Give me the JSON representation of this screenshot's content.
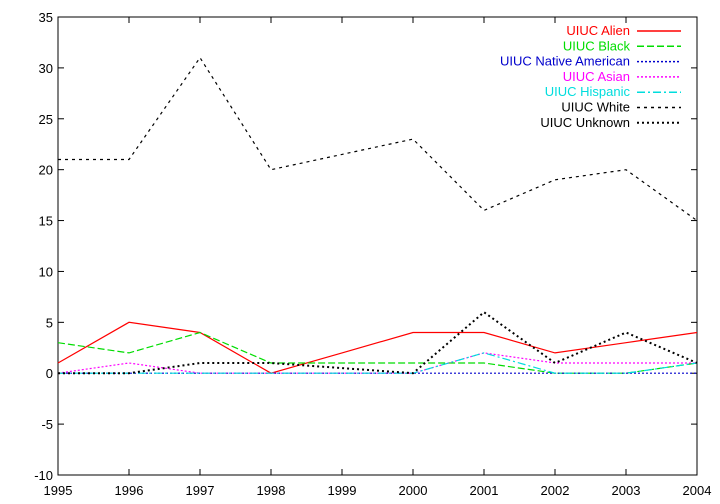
{
  "chart_data": {
    "type": "line",
    "title": "",
    "xlabel": "",
    "ylabel": "",
    "x": [
      1995,
      1996,
      1997,
      1998,
      1999,
      2000,
      2001,
      2002,
      2003,
      2004
    ],
    "xlim": [
      1995,
      2004
    ],
    "ylim": [
      -10,
      35
    ],
    "x_ticks": [
      "1995",
      "1996",
      "1997",
      "1998",
      "1999",
      "2000",
      "2001",
      "2002",
      "2003",
      "2004"
    ],
    "y_ticks": [
      "-10",
      "-5",
      "0",
      "5",
      "10",
      "15",
      "20",
      "25",
      "30",
      "35"
    ],
    "grid": false,
    "legend_position": "top-right",
    "series": [
      {
        "name": "UIUC Alien",
        "color": "#ff0000",
        "dash": "solid",
        "values": [
          1,
          5,
          4,
          0,
          2,
          4,
          4,
          2,
          3,
          4
        ]
      },
      {
        "name": "UIUC Black",
        "color": "#00dd00",
        "dash": "dashed",
        "values": [
          3,
          2,
          4,
          1,
          1,
          1,
          1,
          0,
          0,
          1
        ]
      },
      {
        "name": "UIUC Native American",
        "color": "#0000cc",
        "dash": "dotted",
        "values": [
          0,
          0,
          0,
          0,
          0,
          0,
          0,
          0,
          0,
          0
        ]
      },
      {
        "name": "UIUC Asian",
        "color": "#ff00ff",
        "dash": "dotted",
        "values": [
          0,
          1,
          0,
          0,
          0,
          0,
          2,
          1,
          1,
          1
        ]
      },
      {
        "name": "UIUC Hispanic",
        "color": "#00dddd",
        "dash": "dashdot",
        "values": [
          0,
          0,
          0,
          0,
          0,
          0,
          2,
          0,
          0,
          1
        ]
      },
      {
        "name": "UIUC White",
        "color": "#000000",
        "dash": "fine-dashed",
        "values": [
          21,
          21,
          31,
          20,
          21.5,
          23,
          16,
          19,
          20,
          15
        ]
      },
      {
        "name": "UIUC Unknown",
        "color": "#000000",
        "dash": "dotted-bold",
        "values": [
          0,
          0,
          1,
          1,
          0.5,
          0,
          6,
          1,
          4,
          1
        ]
      }
    ]
  }
}
